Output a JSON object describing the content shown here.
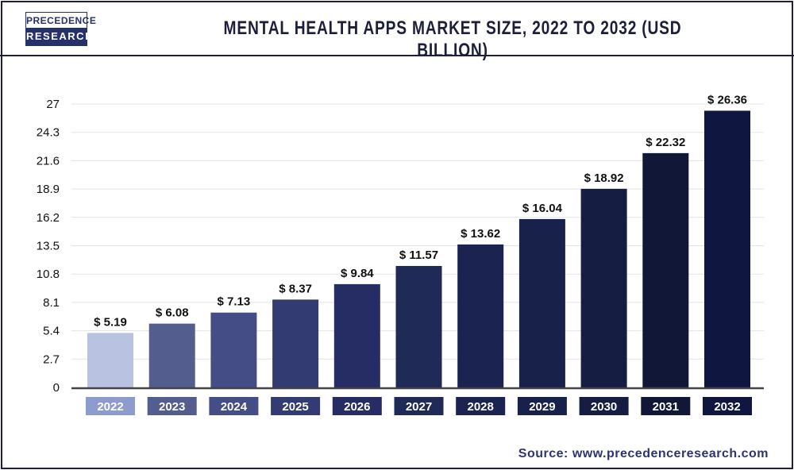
{
  "header": {
    "logo_top": "PRECEDENCE",
    "logo_bottom": "RESEARCH",
    "title": "MENTAL HEALTH APPS MARKET SIZE, 2022 TO 2032 (USD BILLION)"
  },
  "source": "Source: www.precedenceresearch.com",
  "chart_data": {
    "type": "bar",
    "title": "MENTAL HEALTH APPS MARKET SIZE, 2022 TO 2032 (USD BILLION)",
    "xlabel": "",
    "ylabel": "",
    "categories": [
      "2022",
      "2023",
      "2024",
      "2025",
      "2026",
      "2027",
      "2028",
      "2029",
      "2030",
      "2031",
      "2032"
    ],
    "values": [
      5.19,
      6.08,
      7.13,
      8.37,
      9.84,
      11.57,
      13.62,
      16.04,
      18.92,
      22.32,
      26.36
    ],
    "value_labels": [
      "$ 5.19",
      "$ 6.08",
      "$ 7.13",
      "$ 8.37",
      "$ 9.84",
      "$ 11.57",
      "$ 13.62",
      "$ 16.04",
      "$ 18.92",
      "$ 22.32",
      "$ 26.36"
    ],
    "yticks": [
      "0",
      "2.7",
      "5.4",
      "8.1",
      "10.8",
      "13.5",
      "16.2",
      "18.9",
      "21.6",
      "24.3",
      "27"
    ],
    "ylim": [
      0,
      27
    ],
    "grid": true,
    "bar_colors": [
      "#b9c2e1",
      "#535e8f",
      "#444d86",
      "#333c72",
      "#262d64",
      "#1f2a56",
      "#1b2350",
      "#18214a",
      "#151d42",
      "#111837",
      "#0f1640"
    ],
    "label_colors": [
      "#8d9bcf",
      "#535e8f",
      "#444d86",
      "#333c72",
      "#262d64",
      "#1f2a56",
      "#1b2350",
      "#18214a",
      "#151d42",
      "#111837",
      "#0f1640"
    ]
  }
}
